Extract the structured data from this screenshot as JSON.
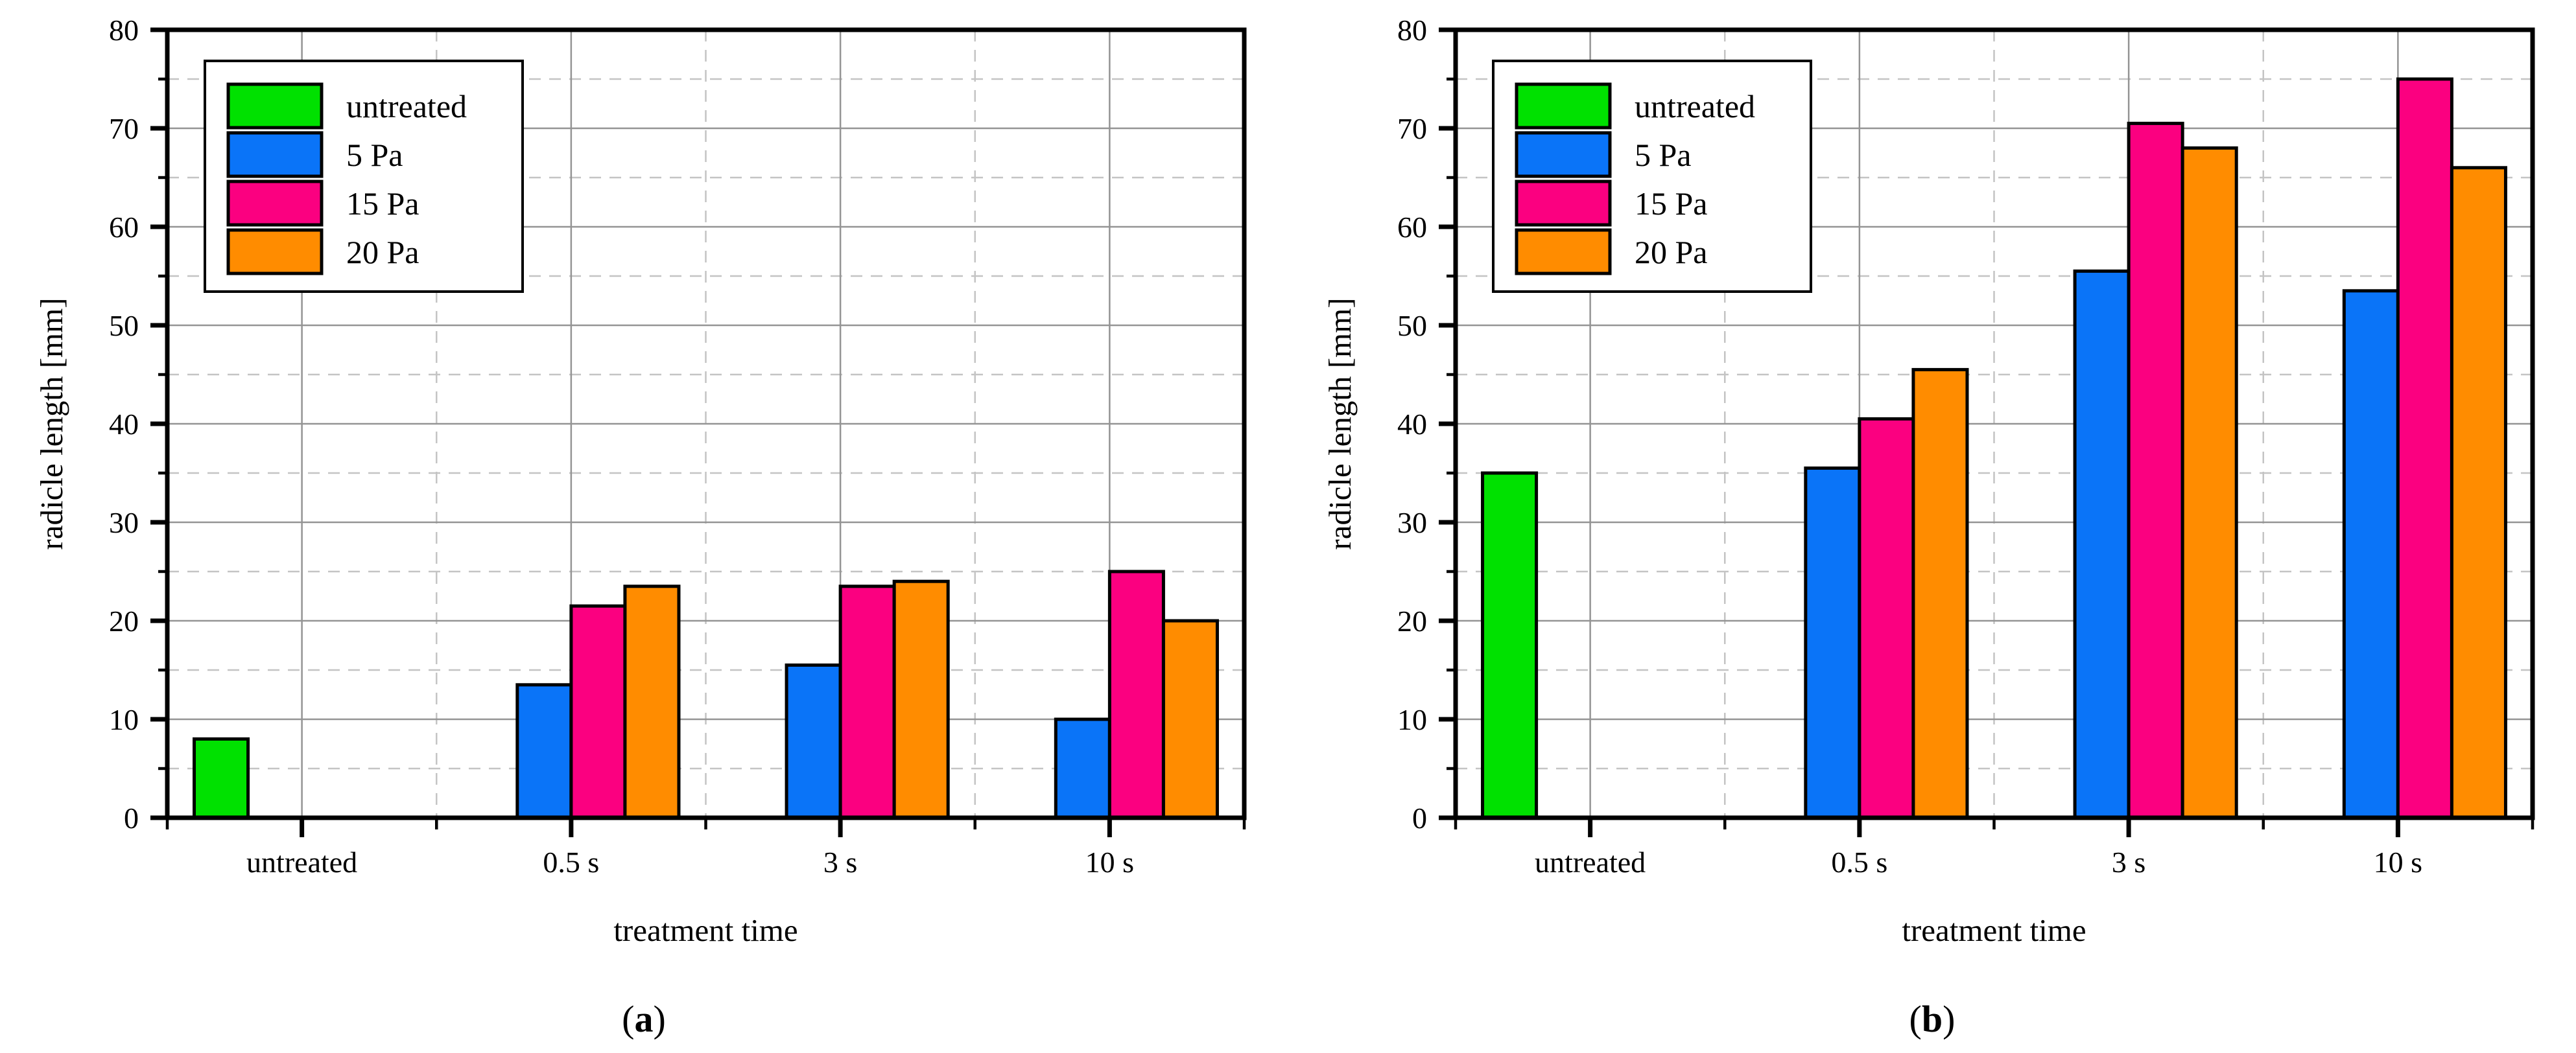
{
  "page": {
    "background": "#FFFFFF"
  },
  "colors": {
    "axis": "#000000",
    "grid_major": "#949494",
    "grid_minor": "#C4C4C4",
    "plot_background": "#FFFFFF",
    "series_untreated": "#00E100",
    "series_5pa": "#0A74F8",
    "series_15pa": "#FB0080",
    "series_20pa": "#FF8C00"
  },
  "captions": {
    "a": {
      "open": "(",
      "letter": "a",
      "close": ")"
    },
    "b": {
      "open": "(",
      "letter": "b",
      "close": ")"
    }
  },
  "chart_data": [
    {
      "id": "a",
      "type": "bar",
      "title": "",
      "xlabel": "treatment time",
      "ylabel": "radicle length [mm]",
      "ylim": [
        0,
        80
      ],
      "yticks": [
        0,
        10,
        20,
        30,
        40,
        50,
        60,
        70,
        80
      ],
      "yticks_minor": [
        5,
        15,
        25,
        35,
        45,
        55,
        65,
        75
      ],
      "categories": [
        "untreated",
        "0.5 s",
        "3 s",
        "10 s"
      ],
      "series": [
        {
          "name": "untreated",
          "color": "#00E100",
          "values": [
            8,
            null,
            null,
            null
          ]
        },
        {
          "name": "5 Pa",
          "color": "#0A74F8",
          "values": [
            null,
            13.5,
            15.5,
            10
          ]
        },
        {
          "name": "15 Pa",
          "color": "#FB0080",
          "values": [
            null,
            21.5,
            23.5,
            25
          ]
        },
        {
          "name": "20 Pa",
          "color": "#FF8C00",
          "values": [
            null,
            23.5,
            24,
            20
          ]
        }
      ],
      "legend": {
        "position": "top-left",
        "items": [
          "untreated",
          "5 Pa",
          "15 Pa",
          "20 Pa"
        ]
      },
      "grid": {
        "major": "solid",
        "minor": "dashed"
      }
    },
    {
      "id": "b",
      "type": "bar",
      "title": "",
      "xlabel": "treatment time",
      "ylabel": "radicle length [mm]",
      "ylim": [
        0,
        80
      ],
      "yticks": [
        0,
        10,
        20,
        30,
        40,
        50,
        60,
        70,
        80
      ],
      "yticks_minor": [
        5,
        15,
        25,
        35,
        45,
        55,
        65,
        75
      ],
      "categories": [
        "untreated",
        "0.5 s",
        "3 s",
        "10 s"
      ],
      "series": [
        {
          "name": "untreated",
          "color": "#00E100",
          "values": [
            35,
            null,
            null,
            null
          ]
        },
        {
          "name": "5 Pa",
          "color": "#0A74F8",
          "values": [
            null,
            35.5,
            55.5,
            53.5
          ]
        },
        {
          "name": "15 Pa",
          "color": "#FB0080",
          "values": [
            null,
            40.5,
            70.5,
            75
          ]
        },
        {
          "name": "20 Pa",
          "color": "#FF8C00",
          "values": [
            null,
            45.5,
            68,
            66
          ]
        }
      ],
      "legend": {
        "position": "top-left",
        "items": [
          "untreated",
          "5 Pa",
          "15 Pa",
          "20 Pa"
        ]
      },
      "grid": {
        "major": "solid",
        "minor": "dashed"
      }
    }
  ]
}
